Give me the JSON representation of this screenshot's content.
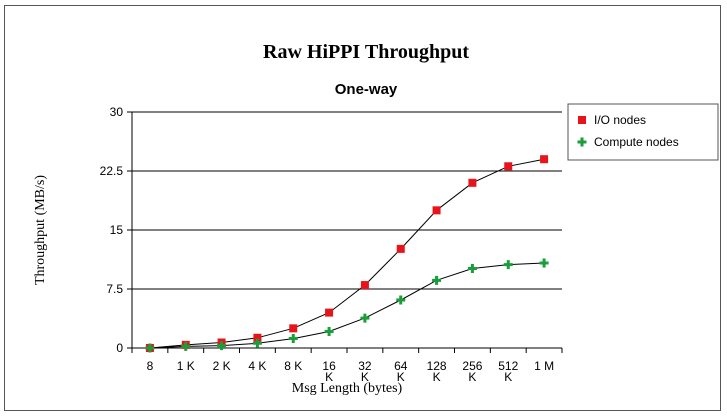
{
  "chart_data": {
    "type": "line",
    "title": "Raw HiPPI Throughput",
    "subtitle": "One-way",
    "xlabel": "Msg Length (bytes)",
    "ylabel": "Throughput (MB/s)",
    "categories": [
      [
        "8"
      ],
      [
        "1 K"
      ],
      [
        "2 K"
      ],
      [
        "4 K"
      ],
      [
        "8 K"
      ],
      [
        "16",
        "K"
      ],
      [
        "32",
        "K"
      ],
      [
        "64",
        "K"
      ],
      [
        "128",
        "K"
      ],
      [
        "256",
        "K"
      ],
      [
        "512",
        "K"
      ],
      [
        "1 M"
      ]
    ],
    "yticks": [
      "0",
      "7.5",
      "15",
      "22.5",
      "30"
    ],
    "ytick_values": [
      0,
      7.5,
      15,
      22.5,
      30
    ],
    "ylim": [
      0,
      30
    ],
    "grid": "horizontal",
    "legend_position": "right",
    "series": [
      {
        "name": "I/O nodes",
        "color": "#e8141c",
        "marker": "square",
        "values": [
          0.0,
          0.4,
          0.7,
          1.3,
          2.5,
          4.5,
          8.0,
          12.6,
          17.5,
          21.0,
          23.1,
          24.0
        ]
      },
      {
        "name": "Compute nodes",
        "color": "#1a9e3a",
        "marker": "plus",
        "values": [
          0.0,
          0.2,
          0.3,
          0.6,
          1.2,
          2.1,
          3.8,
          6.1,
          8.6,
          10.1,
          10.6,
          10.8
        ]
      }
    ]
  }
}
